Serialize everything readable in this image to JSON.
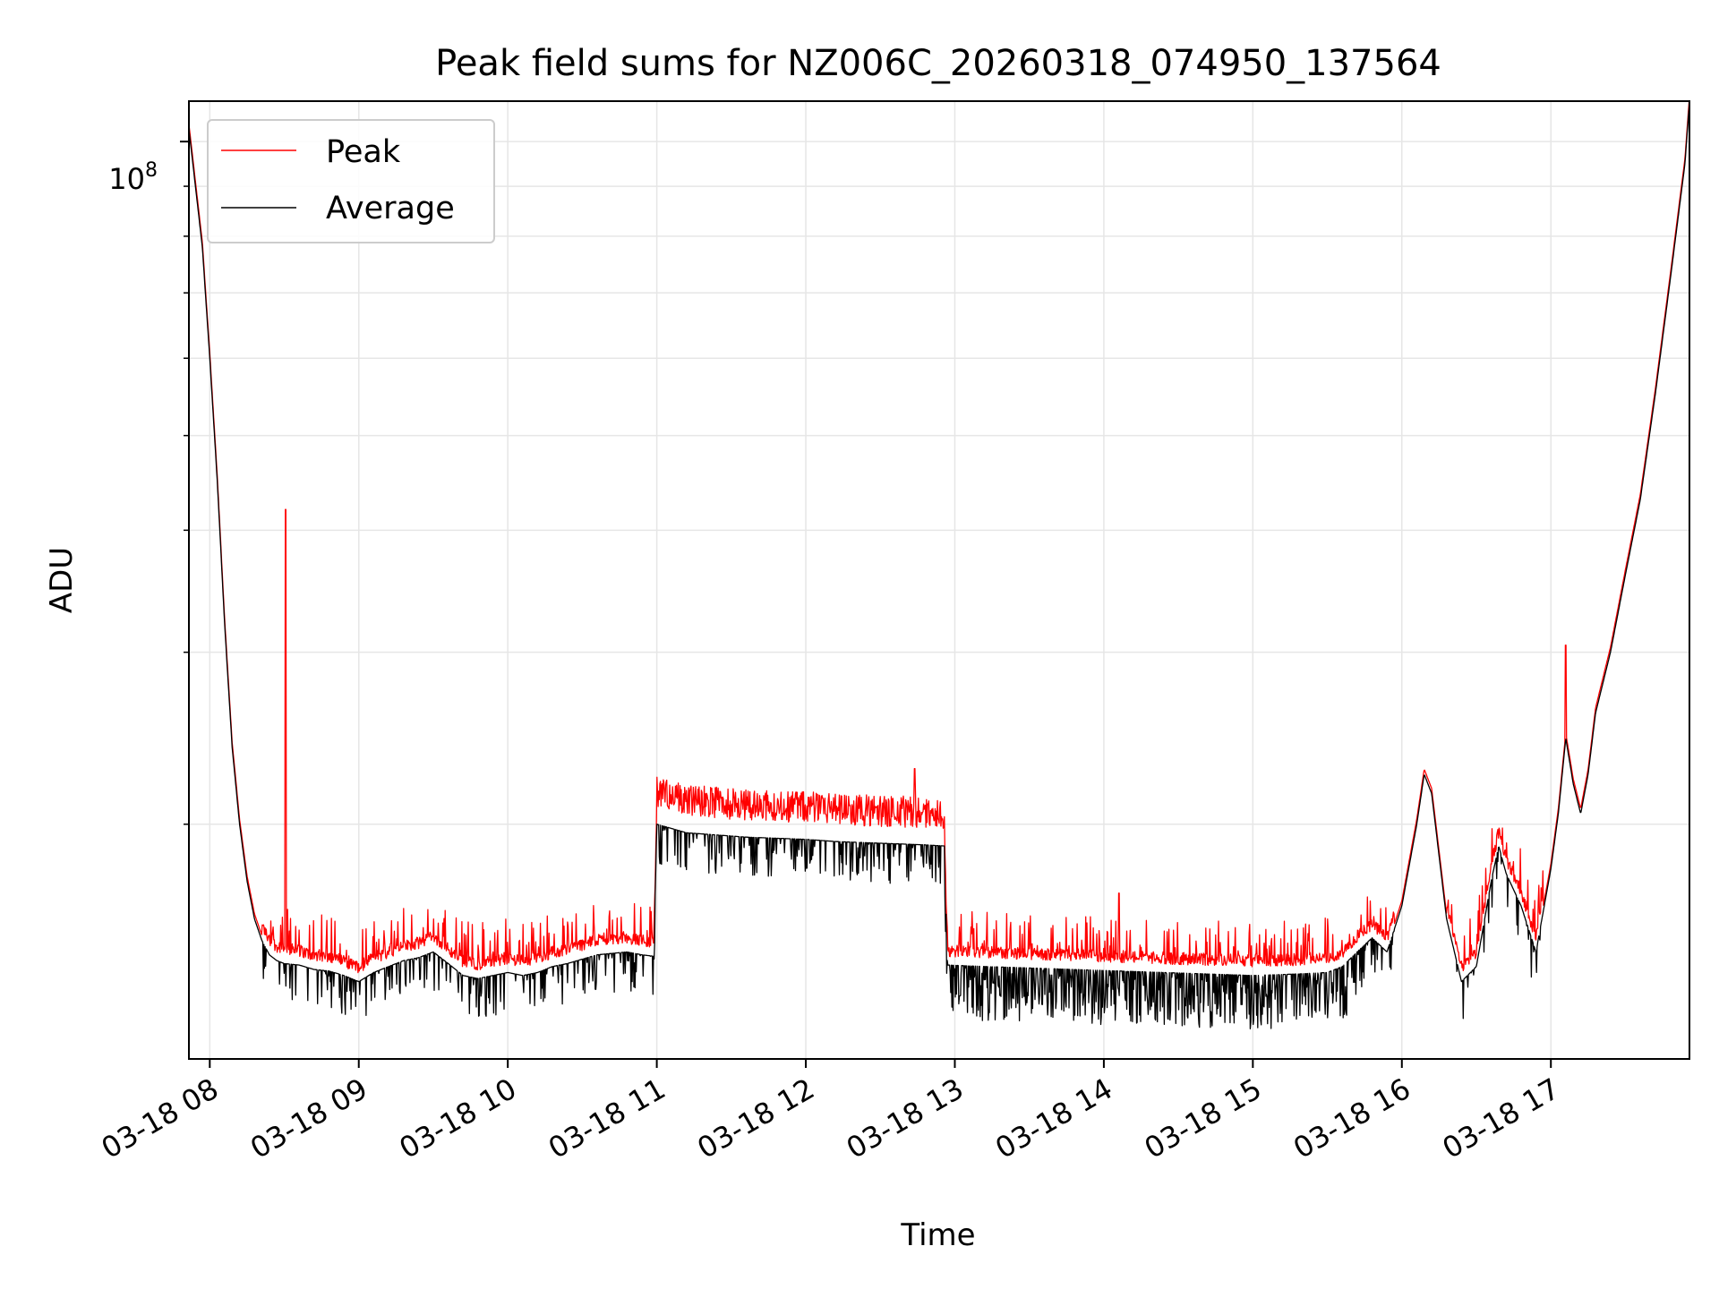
{
  "chart_data": {
    "type": "line",
    "title": "Peak field sums for NZ006C_20260318_074950_137564",
    "xlabel": "Time",
    "ylabel": "ADU",
    "y_scale": "log",
    "ylim": [
      11500000,
      110000000
    ],
    "y_major_tick_label": {
      "base": "10",
      "exponent": "8",
      "value": 100000000
    },
    "y_minor_ticks": [
      20000000,
      30000000,
      40000000,
      50000000,
      60000000,
      70000000,
      80000000,
      90000000
    ],
    "xlim_hours": [
      7.86,
      17.93
    ],
    "x_tick_hours": [
      8,
      9,
      10,
      11,
      12,
      13,
      14,
      15,
      16,
      17
    ],
    "x_tick_labels": [
      "03-18 08",
      "03-18 09",
      "03-18 10",
      "03-18 11",
      "03-18 12",
      "03-18 13",
      "03-18 14",
      "03-18 15",
      "03-18 16",
      "03-18 17"
    ],
    "grid": true,
    "legend_location": "top-left",
    "series": [
      {
        "name": "Peak",
        "color": "#ff0000"
      },
      {
        "name": "Average",
        "color": "#000000"
      }
    ],
    "average_profile": {
      "x": [
        7.86,
        7.95,
        8.0,
        8.05,
        8.1,
        8.15,
        8.2,
        8.25,
        8.3,
        8.35,
        8.4,
        8.45,
        8.5,
        8.6,
        8.7,
        8.8,
        8.9,
        9.0,
        9.1,
        9.2,
        9.3,
        9.4,
        9.5,
        9.6,
        9.7,
        9.8,
        9.9,
        10.0,
        10.1,
        10.2,
        10.3,
        10.4,
        10.5,
        10.6,
        10.7,
        10.8,
        10.9,
        10.98,
        11.0,
        11.2,
        11.4,
        11.6,
        11.8,
        12.0,
        12.2,
        12.4,
        12.6,
        12.8,
        12.93,
        12.95,
        13.2,
        13.5,
        13.8,
        14.1,
        14.4,
        14.7,
        15.0,
        15.3,
        15.5,
        15.6,
        15.7,
        15.8,
        15.9,
        16.0,
        16.1,
        16.15,
        16.2,
        16.3,
        16.4,
        16.5,
        16.6,
        16.65,
        16.7,
        16.8,
        16.9,
        17.0,
        17.05,
        17.1,
        17.15,
        17.2,
        17.25,
        17.3,
        17.4,
        17.5,
        17.6,
        17.7,
        17.8,
        17.9,
        17.93
      ],
      "y": [
        103000000,
        78000000,
        60000000,
        45000000,
        32000000,
        24000000,
        20000000,
        17500000,
        16000000,
        15200000,
        14700000,
        14500000,
        14400000,
        14350000,
        14200000,
        14150000,
        14000000,
        13800000,
        14100000,
        14300000,
        14500000,
        14600000,
        14800000,
        14400000,
        14000000,
        13900000,
        14000000,
        14100000,
        14000000,
        14100000,
        14300000,
        14400000,
        14550000,
        14700000,
        14750000,
        14800000,
        14700000,
        14650000,
        20000000,
        19600000,
        19500000,
        19400000,
        19350000,
        19300000,
        19200000,
        19150000,
        19100000,
        19050000,
        19000000,
        14350000,
        14300000,
        14250000,
        14200000,
        14150000,
        14100000,
        14050000,
        14000000,
        14050000,
        14100000,
        14300000,
        14800000,
        15300000,
        14800000,
        16500000,
        20000000,
        22500000,
        21500000,
        16000000,
        13800000,
        14300000,
        17500000,
        19000000,
        17800000,
        16500000,
        14800000,
        18000000,
        20500000,
        24500000,
        22000000,
        20500000,
        22500000,
        26000000,
        30000000,
        36000000,
        43000000,
        55000000,
        72000000,
        95000000,
        110000000
      ]
    }
  }
}
